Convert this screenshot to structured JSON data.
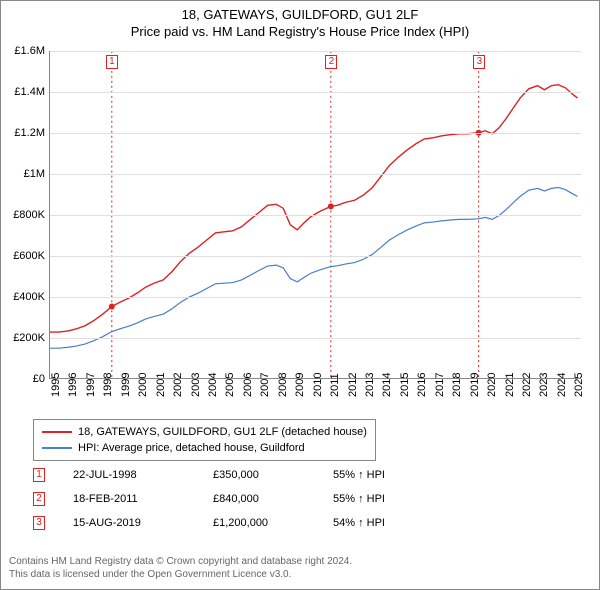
{
  "title_line1": "18, GATEWAYS, GUILDFORD, GU1 2LF",
  "title_line2": "Price paid vs. HM Land Registry's House Price Index (HPI)",
  "chart": {
    "type": "line",
    "background_color": "#ffffff",
    "grid_color": "#e0e0e0",
    "axis_color": "#888888",
    "x_years": [
      1995,
      1996,
      1997,
      1998,
      1999,
      2000,
      2001,
      2002,
      2003,
      2004,
      2005,
      2006,
      2007,
      2008,
      2009,
      2010,
      2011,
      2012,
      2013,
      2014,
      2015,
      2016,
      2017,
      2018,
      2019,
      2020,
      2021,
      2022,
      2023,
      2024,
      2025
    ],
    "y_ticks": [
      0,
      200000,
      400000,
      600000,
      800000,
      1000000,
      1200000,
      1400000,
      1600000
    ],
    "y_tick_labels": [
      "£0",
      "£200K",
      "£400K",
      "£600K",
      "£800K",
      "£1M",
      "£1.2M",
      "£1.4M",
      "£1.6M"
    ],
    "ylim": [
      0,
      1600000
    ],
    "xlim": [
      1995,
      2025.5
    ],
    "label_fontsize": 11,
    "series": {
      "property": {
        "label": "18, GATEWAYS, GUILDFORD, GU1 2LF (detached house)",
        "color": "#dd2222",
        "line_width": 1.4,
        "points": [
          [
            1995.0,
            225000
          ],
          [
            1995.5,
            225000
          ],
          [
            1996.0,
            230000
          ],
          [
            1996.5,
            240000
          ],
          [
            1997.0,
            255000
          ],
          [
            1997.5,
            280000
          ],
          [
            1998.0,
            310000
          ],
          [
            1998.55,
            350000
          ],
          [
            1999.0,
            370000
          ],
          [
            1999.5,
            390000
          ],
          [
            2000.0,
            415000
          ],
          [
            2000.5,
            445000
          ],
          [
            2001.0,
            465000
          ],
          [
            2001.5,
            480000
          ],
          [
            2002.0,
            520000
          ],
          [
            2002.5,
            570000
          ],
          [
            2003.0,
            610000
          ],
          [
            2003.5,
            640000
          ],
          [
            2004.0,
            675000
          ],
          [
            2004.5,
            710000
          ],
          [
            2005.0,
            715000
          ],
          [
            2005.5,
            720000
          ],
          [
            2006.0,
            740000
          ],
          [
            2006.5,
            775000
          ],
          [
            2007.0,
            810000
          ],
          [
            2007.5,
            845000
          ],
          [
            2008.0,
            850000
          ],
          [
            2008.4,
            830000
          ],
          [
            2008.8,
            750000
          ],
          [
            2009.2,
            725000
          ],
          [
            2009.6,
            760000
          ],
          [
            2010.0,
            790000
          ],
          [
            2010.5,
            815000
          ],
          [
            2011.0,
            835000
          ],
          [
            2011.13,
            840000
          ],
          [
            2011.5,
            845000
          ],
          [
            2012.0,
            860000
          ],
          [
            2012.5,
            870000
          ],
          [
            2013.0,
            895000
          ],
          [
            2013.5,
            930000
          ],
          [
            2014.0,
            985000
          ],
          [
            2014.5,
            1040000
          ],
          [
            2015.0,
            1080000
          ],
          [
            2015.5,
            1115000
          ],
          [
            2016.0,
            1145000
          ],
          [
            2016.5,
            1170000
          ],
          [
            2017.0,
            1175000
          ],
          [
            2017.5,
            1185000
          ],
          [
            2018.0,
            1190000
          ],
          [
            2018.5,
            1195000
          ],
          [
            2019.0,
            1195000
          ],
          [
            2019.62,
            1200000
          ],
          [
            2020.0,
            1210000
          ],
          [
            2020.4,
            1195000
          ],
          [
            2020.8,
            1225000
          ],
          [
            2021.2,
            1270000
          ],
          [
            2021.6,
            1320000
          ],
          [
            2022.0,
            1370000
          ],
          [
            2022.5,
            1415000
          ],
          [
            2023.0,
            1430000
          ],
          [
            2023.4,
            1410000
          ],
          [
            2023.8,
            1430000
          ],
          [
            2024.2,
            1435000
          ],
          [
            2024.6,
            1420000
          ],
          [
            2025.0,
            1390000
          ],
          [
            2025.3,
            1370000
          ]
        ]
      },
      "hpi": {
        "label": "HPI: Average price, detached house, Guildford",
        "color": "#4a7ec8",
        "line_width": 1.2,
        "points": [
          [
            1995.0,
            146000
          ],
          [
            1995.5,
            146000
          ],
          [
            1996.0,
            150000
          ],
          [
            1996.5,
            156000
          ],
          [
            1997.0,
            166000
          ],
          [
            1997.5,
            182000
          ],
          [
            1998.0,
            201000
          ],
          [
            1998.55,
            227000
          ],
          [
            1999.0,
            240000
          ],
          [
            1999.5,
            253000
          ],
          [
            2000.0,
            269000
          ],
          [
            2000.5,
            289000
          ],
          [
            2001.0,
            302000
          ],
          [
            2001.5,
            312000
          ],
          [
            2002.0,
            338000
          ],
          [
            2002.5,
            370000
          ],
          [
            2003.0,
            396000
          ],
          [
            2003.5,
            415000
          ],
          [
            2004.0,
            438000
          ],
          [
            2004.5,
            461000
          ],
          [
            2005.0,
            464000
          ],
          [
            2005.5,
            467000
          ],
          [
            2006.0,
            480000
          ],
          [
            2006.5,
            503000
          ],
          [
            2007.0,
            526000
          ],
          [
            2007.5,
            548000
          ],
          [
            2008.0,
            552000
          ],
          [
            2008.4,
            539000
          ],
          [
            2008.8,
            487000
          ],
          [
            2009.2,
            470000
          ],
          [
            2009.6,
            493000
          ],
          [
            2010.0,
            513000
          ],
          [
            2010.5,
            529000
          ],
          [
            2011.0,
            542000
          ],
          [
            2011.13,
            545000
          ],
          [
            2011.5,
            549000
          ],
          [
            2012.0,
            558000
          ],
          [
            2012.5,
            565000
          ],
          [
            2013.0,
            581000
          ],
          [
            2013.5,
            604000
          ],
          [
            2014.0,
            639000
          ],
          [
            2014.5,
            675000
          ],
          [
            2015.0,
            701000
          ],
          [
            2015.5,
            724000
          ],
          [
            2016.0,
            743000
          ],
          [
            2016.5,
            759000
          ],
          [
            2017.0,
            763000
          ],
          [
            2017.5,
            769000
          ],
          [
            2018.0,
            773000
          ],
          [
            2018.5,
            776000
          ],
          [
            2019.0,
            776000
          ],
          [
            2019.62,
            779000
          ],
          [
            2020.0,
            786000
          ],
          [
            2020.4,
            776000
          ],
          [
            2020.8,
            795000
          ],
          [
            2021.2,
            824000
          ],
          [
            2021.6,
            857000
          ],
          [
            2022.0,
            889000
          ],
          [
            2022.5,
            919000
          ],
          [
            2023.0,
            928000
          ],
          [
            2023.4,
            915000
          ],
          [
            2023.8,
            928000
          ],
          [
            2024.2,
            932000
          ],
          [
            2024.6,
            922000
          ],
          [
            2025.0,
            902000
          ],
          [
            2025.3,
            889000
          ]
        ]
      }
    },
    "sale_markers": [
      {
        "n": "1",
        "year": 1998.55,
        "price": 350000,
        "color": "#dd2222"
      },
      {
        "n": "2",
        "year": 2011.13,
        "price": 840000,
        "color": "#dd2222"
      },
      {
        "n": "3",
        "year": 2019.62,
        "price": 1200000,
        "color": "#dd2222"
      }
    ],
    "sale_point_radius": 3
  },
  "legend": {
    "rows": [
      {
        "color": "#dd2222",
        "label": "18, GATEWAYS, GUILDFORD, GU1 2LF (detached house)"
      },
      {
        "color": "#4a7ec8",
        "label": "HPI: Average price, detached house, Guildford"
      }
    ]
  },
  "sales_table": {
    "rows": [
      {
        "n": "1",
        "date": "22-JUL-1998",
        "price": "£350,000",
        "pct": "55% ↑ HPI"
      },
      {
        "n": "2",
        "date": "18-FEB-2011",
        "price": "£840,000",
        "pct": "55% ↑ HPI"
      },
      {
        "n": "3",
        "date": "15-AUG-2019",
        "price": "£1,200,000",
        "pct": "54% ↑ HPI"
      }
    ]
  },
  "footer": {
    "line1": "Contains HM Land Registry data © Crown copyright and database right 2024.",
    "line2": "This data is licensed under the Open Government Licence v3.0."
  }
}
